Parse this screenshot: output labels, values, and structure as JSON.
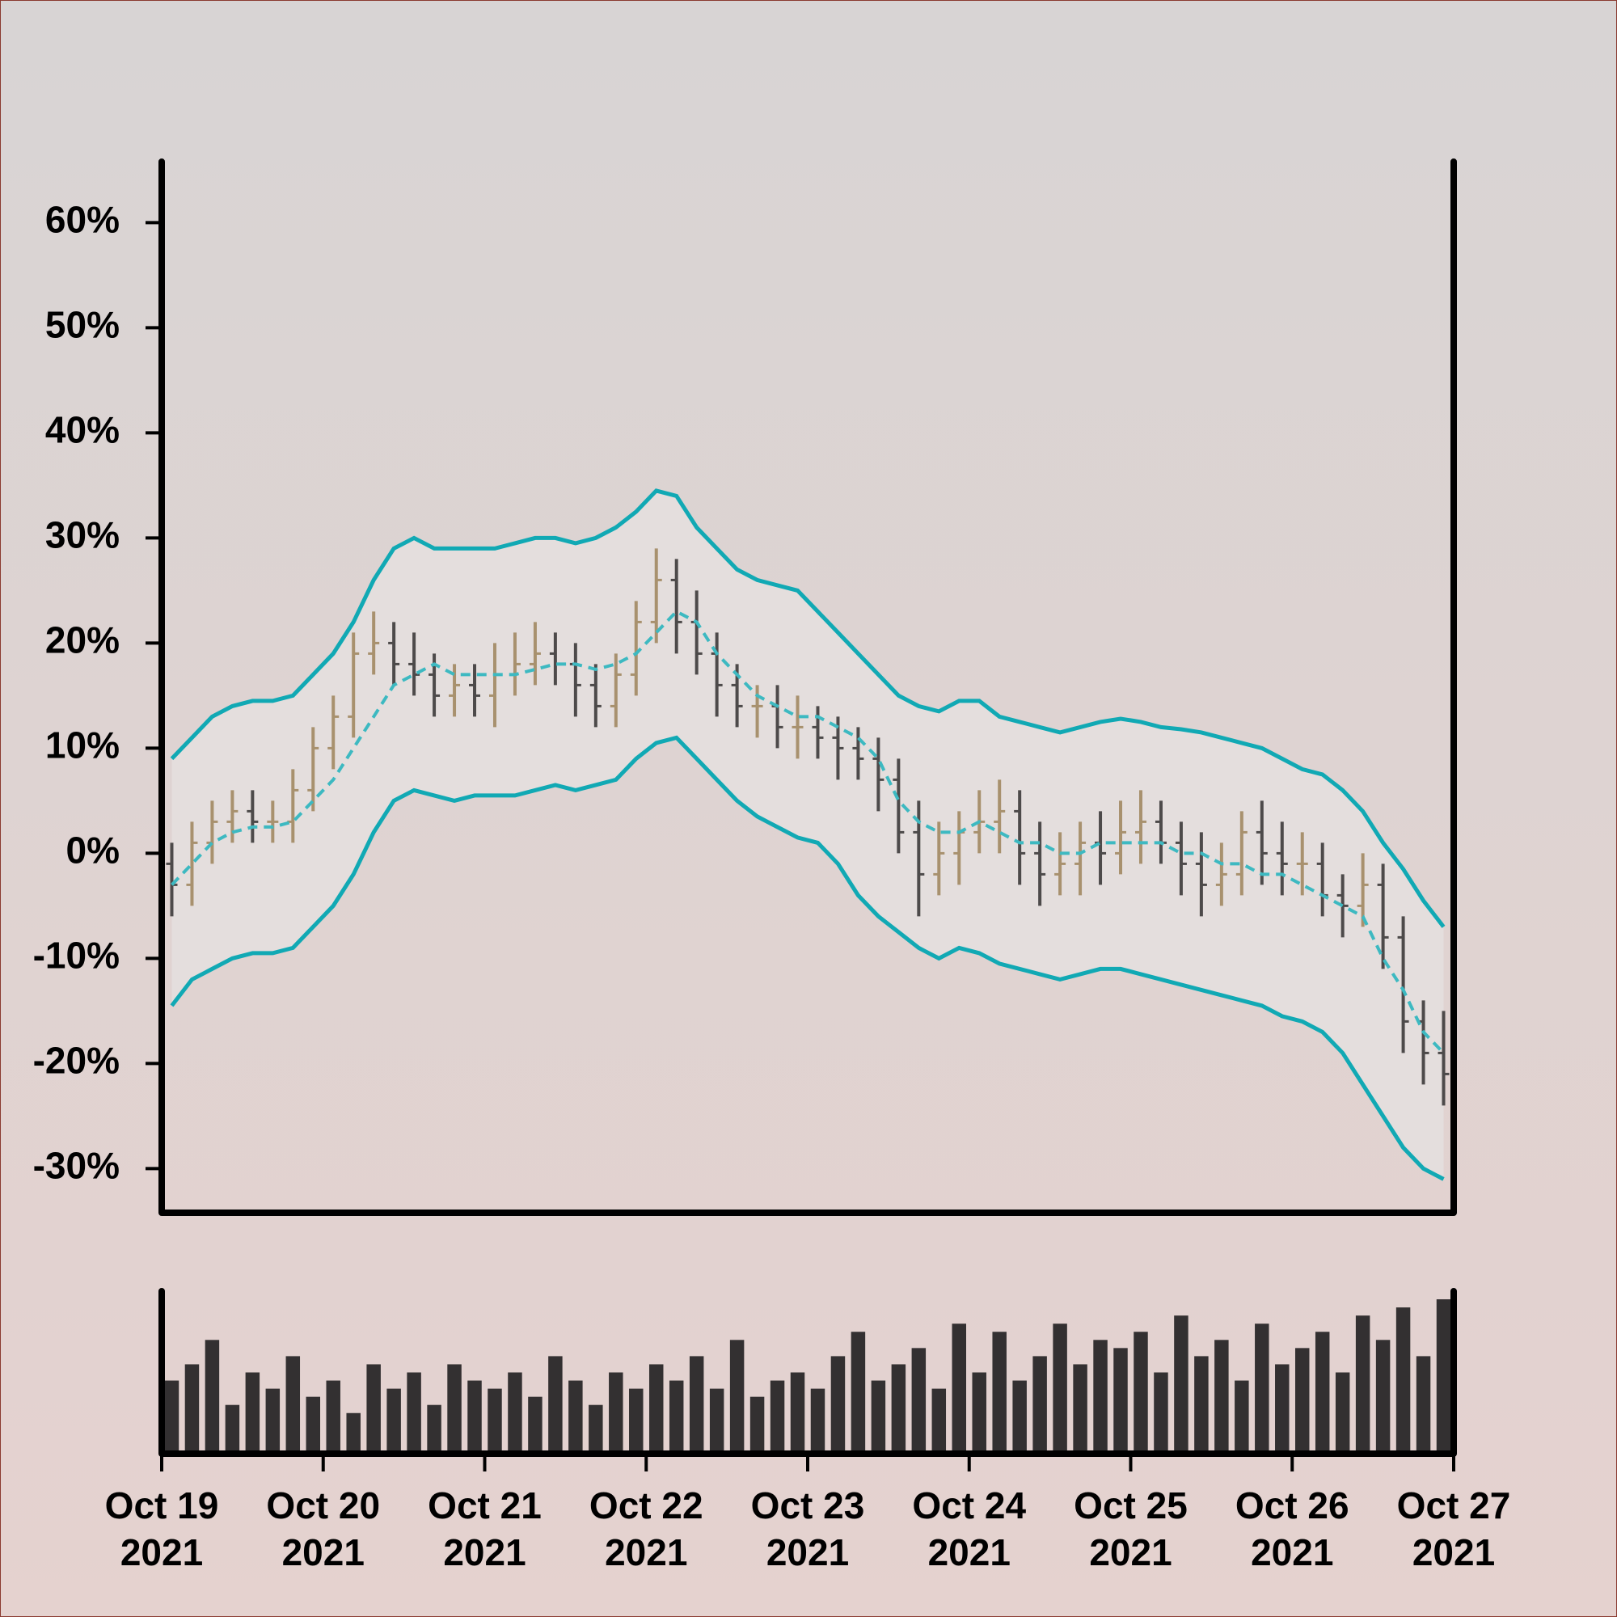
{
  "chart_data": {
    "type": "ohlc",
    "x": [
      "2021-10-19T01:30",
      "2021-10-19T04:30",
      "2021-10-19T07:30",
      "2021-10-19T10:30",
      "2021-10-19T13:30",
      "2021-10-19T16:30",
      "2021-10-19T19:30",
      "2021-10-19T22:30",
      "2021-10-20T01:30",
      "2021-10-20T04:30",
      "2021-10-20T07:30",
      "2021-10-20T10:30",
      "2021-10-20T13:30",
      "2021-10-20T16:30",
      "2021-10-20T19:30",
      "2021-10-20T22:30",
      "2021-10-21T01:30",
      "2021-10-21T04:30",
      "2021-10-21T07:30",
      "2021-10-21T10:30",
      "2021-10-21T13:30",
      "2021-10-21T16:30",
      "2021-10-21T19:30",
      "2021-10-21T22:30",
      "2021-10-22T01:30",
      "2021-10-22T04:30",
      "2021-10-22T07:30",
      "2021-10-22T10:30",
      "2021-10-22T13:30",
      "2021-10-22T16:30",
      "2021-10-22T19:30",
      "2021-10-22T22:30",
      "2021-10-23T01:30",
      "2021-10-23T04:30",
      "2021-10-23T07:30",
      "2021-10-23T10:30",
      "2021-10-23T13:30",
      "2021-10-23T16:30",
      "2021-10-23T19:30",
      "2021-10-23T22:30",
      "2021-10-24T01:30",
      "2021-10-24T04:30",
      "2021-10-24T07:30",
      "2021-10-24T10:30",
      "2021-10-24T13:30",
      "2021-10-24T16:30",
      "2021-10-24T19:30",
      "2021-10-24T22:30",
      "2021-10-25T01:30",
      "2021-10-25T04:30",
      "2021-10-25T07:30",
      "2021-10-25T10:30",
      "2021-10-25T13:30",
      "2021-10-25T16:30",
      "2021-10-25T19:30",
      "2021-10-25T22:30",
      "2021-10-26T01:30",
      "2021-10-26T04:30",
      "2021-10-26T07:30",
      "2021-10-26T10:30",
      "2021-10-26T13:30",
      "2021-10-26T16:30",
      "2021-10-26T19:30",
      "2021-10-26T22:30"
    ],
    "open": [
      -1,
      -3,
      1,
      3,
      4,
      3,
      3,
      6,
      10,
      13,
      19,
      20,
      18,
      17,
      15,
      16,
      15,
      17,
      18,
      19,
      18,
      16,
      14,
      17,
      22,
      26,
      22,
      19,
      16,
      14,
      14,
      12,
      12,
      11,
      10,
      9,
      7,
      2,
      -2,
      0,
      2,
      3,
      4,
      0,
      -2,
      -1,
      1,
      0,
      2,
      3,
      1,
      -1,
      -3,
      -2,
      2,
      0,
      -1,
      -1,
      -4,
      -5,
      -3,
      -8,
      -16,
      -19
    ],
    "high": [
      1,
      3,
      5,
      6,
      6,
      5,
      8,
      12,
      15,
      21,
      23,
      22,
      21,
      19,
      18,
      18,
      20,
      21,
      22,
      21,
      20,
      18,
      19,
      24,
      29,
      28,
      25,
      21,
      18,
      16,
      16,
      15,
      14,
      13,
      12,
      11,
      9,
      5,
      3,
      4,
      6,
      7,
      6,
      3,
      2,
      3,
      4,
      5,
      6,
      5,
      3,
      2,
      1,
      4,
      5,
      3,
      2,
      1,
      -2,
      0,
      -1,
      -6,
      -14,
      -15
    ],
    "low": [
      -6,
      -5,
      -1,
      1,
      1,
      1,
      1,
      4,
      8,
      11,
      17,
      16,
      15,
      13,
      13,
      13,
      12,
      15,
      16,
      16,
      13,
      12,
      12,
      15,
      20,
      19,
      17,
      13,
      12,
      11,
      10,
      9,
      9,
      7,
      7,
      4,
      0,
      -6,
      -4,
      -3,
      0,
      0,
      -3,
      -5,
      -4,
      -4,
      -3,
      -2,
      -1,
      -1,
      -4,
      -6,
      -5,
      -4,
      -3,
      -4,
      -4,
      -6,
      -8,
      -7,
      -11,
      -19,
      -22,
      -24
    ],
    "close": [
      -3,
      1,
      3,
      4,
      3,
      3,
      6,
      10,
      13,
      19,
      20,
      18,
      17,
      15,
      16,
      15,
      17,
      18,
      19,
      18,
      16,
      14,
      17,
      22,
      26,
      22,
      19,
      16,
      14,
      14,
      12,
      12,
      11,
      10,
      9,
      7,
      2,
      -2,
      0,
      2,
      3,
      4,
      0,
      -2,
      -1,
      1,
      0,
      2,
      3,
      1,
      -1,
      -3,
      -2,
      2,
      0,
      -1,
      -1,
      -4,
      -5,
      -3,
      -8,
      -16,
      -19,
      -21
    ],
    "up_color": "#a8916e",
    "down_color": "#4d4a4a",
    "bands": {
      "color": "#11a9b4",
      "middle_color": "#3db9c1",
      "fill": "#e4dedd",
      "upper": [
        9,
        11,
        13,
        14,
        14.5,
        14.5,
        15,
        17,
        19,
        22,
        26,
        29,
        30,
        29,
        29,
        29,
        29,
        29.5,
        30,
        30,
        29.5,
        30,
        31,
        32.5,
        34.5,
        34,
        31,
        29,
        27,
        26,
        25.5,
        25,
        23,
        21,
        19,
        17,
        15,
        14,
        13.5,
        14.5,
        14.5,
        13,
        12.5,
        12,
        11.5,
        12,
        12.5,
        12.8,
        12.5,
        12,
        11.8,
        11.5,
        11,
        10.5,
        10,
        9,
        8,
        7.5,
        6,
        4,
        1,
        -1.5,
        -4.5,
        -7
      ],
      "middle": [
        -3,
        -1,
        1,
        2,
        2.5,
        2.5,
        3,
        5,
        7,
        10,
        13,
        16,
        17,
        18,
        17,
        17,
        17,
        17,
        17.5,
        18,
        18,
        17.5,
        18,
        19,
        21,
        23,
        22,
        19,
        17,
        15,
        14,
        13,
        13,
        12,
        11,
        9,
        5,
        3,
        2,
        2,
        3,
        2,
        1,
        1,
        0,
        0,
        1,
        1,
        1,
        1,
        0,
        0,
        -1,
        -1,
        -2,
        -2,
        -3,
        -4,
        -5,
        -6,
        -10,
        -13,
        -17,
        -19
      ],
      "lower": [
        -14.5,
        -12,
        -11,
        -10,
        -9.5,
        -9.5,
        -9,
        -7,
        -5,
        -2,
        2,
        5,
        6,
        5.5,
        5,
        5.5,
        5.5,
        5.5,
        6,
        6.5,
        6,
        6.5,
        7,
        9,
        10.5,
        11,
        9,
        7,
        5,
        3.5,
        2.5,
        1.5,
        1,
        -1,
        -4,
        -6,
        -7.5,
        -9,
        -10,
        -9,
        -9.5,
        -10.5,
        -11,
        -11.5,
        -12,
        -11.5,
        -11,
        -11,
        -11.5,
        -12,
        -12.5,
        -13,
        -13.5,
        -14,
        -14.5,
        -15.5,
        -16,
        -17,
        -19,
        -22,
        -25,
        -28,
        -30,
        -31
      ]
    },
    "volume": {
      "color": "#333031",
      "ylim": [
        0,
        100
      ],
      "values": [
        45,
        55,
        70,
        30,
        50,
        40,
        60,
        35,
        45,
        25,
        55,
        40,
        50,
        30,
        55,
        45,
        40,
        50,
        35,
        60,
        45,
        30,
        50,
        40,
        55,
        45,
        60,
        40,
        70,
        35,
        45,
        50,
        40,
        60,
        75,
        45,
        55,
        65,
        40,
        80,
        50,
        75,
        45,
        60,
        80,
        55,
        70,
        65,
        75,
        50,
        85,
        60,
        70,
        45,
        80,
        55,
        65,
        75,
        50,
        85,
        70,
        90,
        60,
        95
      ]
    },
    "xlim": [
      "2021-10-19T00:00",
      "2021-10-27T00:00"
    ],
    "xticks": [
      {
        "value": "2021-10-19T00:00",
        "label": "Oct 19\n2021"
      },
      {
        "value": "2021-10-20T00:00",
        "label": "Oct 20\n2021"
      },
      {
        "value": "2021-10-21T00:00",
        "label": "Oct 21\n2021"
      },
      {
        "value": "2021-10-22T00:00",
        "label": "Oct 22\n2021"
      },
      {
        "value": "2021-10-23T00:00",
        "label": "Oct 23\n2021"
      },
      {
        "value": "2021-10-24T00:00",
        "label": "Oct 24\n2021"
      },
      {
        "value": "2021-10-25T00:00",
        "label": "Oct 25\n2021"
      },
      {
        "value": "2021-10-26T00:00",
        "label": "Oct 26\n2021"
      },
      {
        "value": "2021-10-27T00:00",
        "label": "Oct 27\n2021"
      }
    ],
    "ylim": [
      -34.2,
      65.8
    ],
    "yticks": [
      {
        "value": 60,
        "label": "60%"
      },
      {
        "value": 50,
        "label": "50%"
      },
      {
        "value": 40,
        "label": "40%"
      },
      {
        "value": 30,
        "label": "30%"
      },
      {
        "value": 20,
        "label": "20%"
      },
      {
        "value": 10,
        "label": "10%"
      },
      {
        "value": 0,
        "label": "0%"
      },
      {
        "value": -10,
        "label": "-10%"
      },
      {
        "value": -20,
        "label": "-20%"
      },
      {
        "value": -30,
        "label": "-30%"
      }
    ]
  }
}
